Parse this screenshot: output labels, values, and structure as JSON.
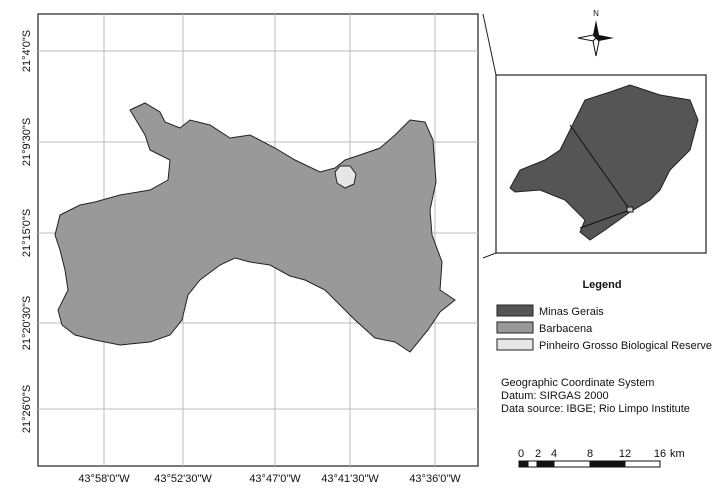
{
  "map": {
    "lat_labels": [
      "21°4'0\"S",
      "21°9'30\"S",
      "21°15'0\"S",
      "21°20'30\"S",
      "21°26'0\"S"
    ],
    "lon_labels": [
      "43°58'0\"W",
      "43°52'30\"W",
      "43°47'0\"W",
      "43°41'30\"W",
      "43°36'0\"W"
    ],
    "north": "N",
    "legend": {
      "title": "Legend",
      "items": [
        "Minas Gerais",
        "Barbacena",
        "Pinheiro Grosso Biological Reserve"
      ]
    },
    "info": [
      "Geographic Coordinate System",
      "Datum: SIRGAS 2000",
      "Data source: IBGE; Rio Limpo Institute"
    ],
    "scale": {
      "labels": [
        0,
        2,
        4,
        8,
        12,
        16
      ],
      "unit": "km"
    }
  }
}
